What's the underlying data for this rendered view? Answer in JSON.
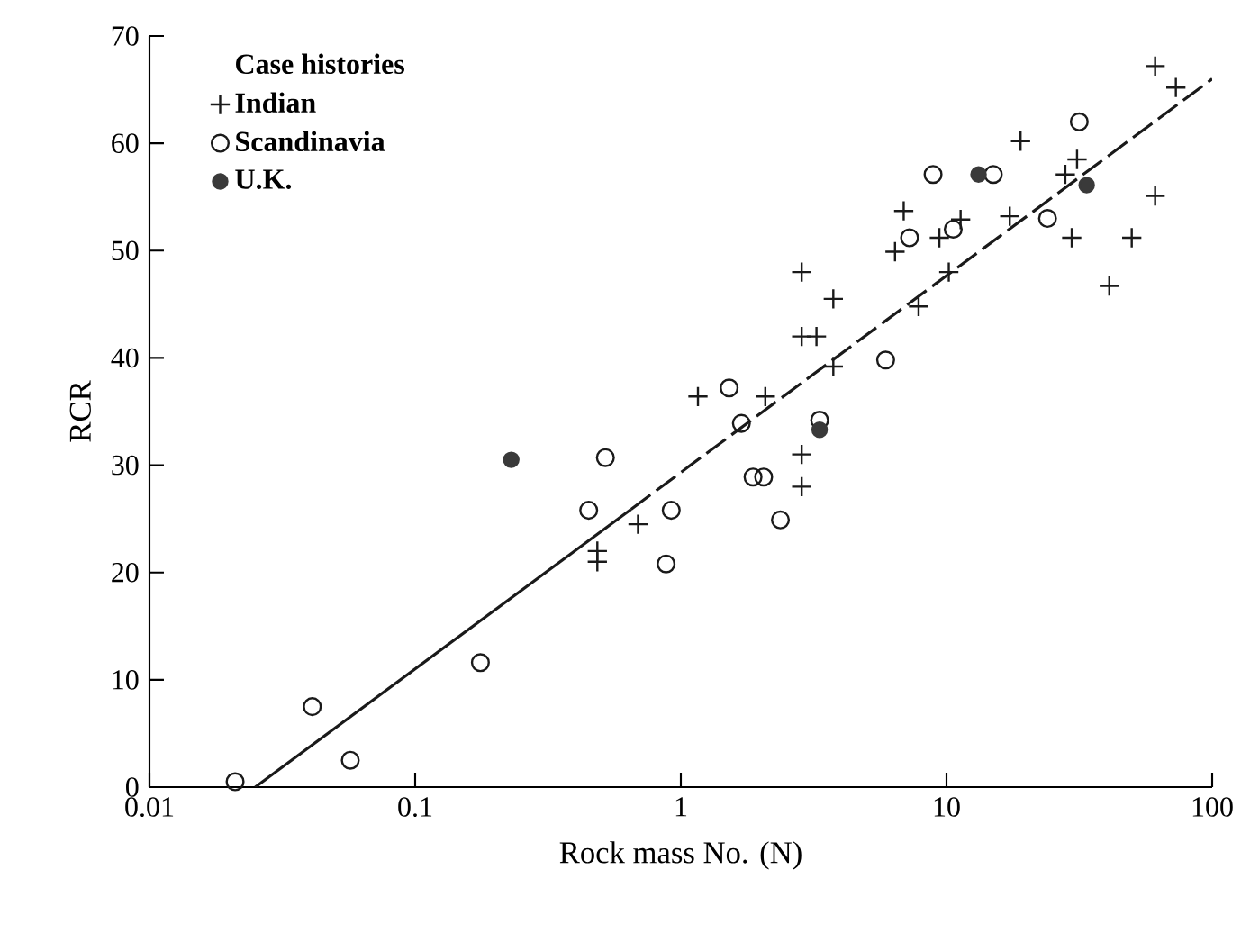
{
  "chart_data": {
    "type": "scatter",
    "xlabel": "Rock mass No. (N)",
    "ylabel": "RCR",
    "legend_title": "Case histories",
    "log": "x",
    "xlim": [
      0.01,
      100
    ],
    "xticks": [
      0.01,
      0.1,
      1,
      10,
      100
    ],
    "ylim": [
      0,
      70
    ],
    "yticks": [
      0,
      10,
      20,
      30,
      40,
      50,
      60,
      70
    ],
    "legend": "top left",
    "series": [
      {
        "name": "Indian",
        "color": "#1a1a1a",
        "marker": "cross",
        "x": [
          0.69,
          0.485,
          0.485,
          1.16,
          2.08,
          2.85,
          2.85,
          2.85,
          3.24,
          2.85,
          3.75,
          3.75,
          7.85,
          10.2,
          6.9,
          6.4,
          9.4,
          11.3,
          17.3,
          19,
          28,
          31,
          29.6,
          49.8,
          41,
          61,
          61,
          73
        ],
        "values": [
          24.5,
          22,
          21,
          36.4,
          36.4,
          31,
          28,
          42,
          42,
          48,
          45.5,
          39.2,
          44.8,
          48,
          53.7,
          49.9,
          51.2,
          52.9,
          53.2,
          60.2,
          57.1,
          58.5,
          51.2,
          51.2,
          46.7,
          55.1,
          67.2,
          65.2
        ]
      },
      {
        "name": "Scandinavia",
        "color": "#1a1a1a",
        "marker": "circle",
        "x": [
          0.021,
          0.041,
          0.057,
          0.176,
          0.52,
          0.45,
          0.92,
          0.88,
          1.52,
          1.69,
          1.87,
          2.05,
          2.37,
          3.33,
          5.9,
          7.26,
          10.6,
          8.9,
          15,
          24,
          31.6
        ],
        "values": [
          0.5,
          7.5,
          2.5,
          11.6,
          30.7,
          25.8,
          25.8,
          20.8,
          37.2,
          33.9,
          28.9,
          28.9,
          24.9,
          34.2,
          39.8,
          51.2,
          52,
          57.1,
          57.1,
          53,
          62
        ]
      },
      {
        "name": "U.K.",
        "color": "#3a3a3a",
        "marker": "filled circle",
        "x": [
          0.23,
          3.33,
          13.2,
          33.7
        ],
        "values": [
          30.5,
          33.3,
          57.1,
          56.1
        ]
      },
      {
        "type": "line",
        "color": "#1a1a1a",
        "line_style": "solid",
        "marker": "none",
        "x": [
          0.025,
          0.65
        ],
        "values": [
          0,
          25.9
        ]
      },
      {
        "type": "line",
        "color": "#1a1a1a",
        "line_style": "dashed",
        "marker": "none",
        "x": [
          0.65,
          100
        ],
        "values": [
          25.9,
          66
        ]
      }
    ]
  }
}
